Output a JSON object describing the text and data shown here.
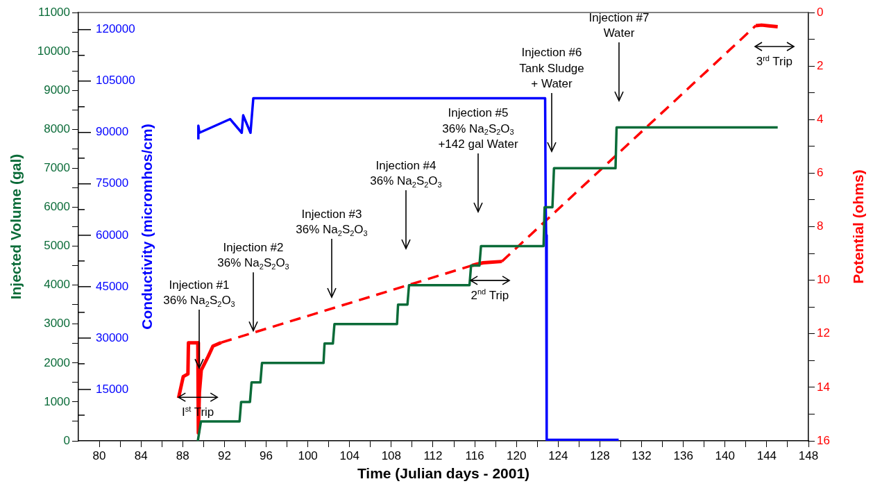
{
  "chart_data": {
    "type": "line",
    "xlabel": "Time (Julian days - 2001)",
    "ylabel": "Injected Volume (gal)",
    "y2label": "Conductivity (micromhos/cm)",
    "y3label": "Potential (ohms)",
    "legend": false,
    "grid": false,
    "marker": "none",
    "xlim": [
      78,
      148
    ],
    "xticks": [
      80,
      {
        "value": 82,
        "label": null
      },
      84,
      {
        "value": 86,
        "label": null
      },
      88,
      {
        "value": 90,
        "label": null
      },
      92,
      {
        "value": 94,
        "label": null
      },
      96,
      {
        "value": 98,
        "label": null
      },
      100,
      {
        "value": 102,
        "label": null
      },
      104,
      {
        "value": 106,
        "label": null
      },
      108,
      {
        "value": 110,
        "label": null
      },
      112,
      {
        "value": 114,
        "label": null
      },
      116,
      {
        "value": 118,
        "label": null
      },
      120,
      {
        "value": 122,
        "label": null
      },
      124,
      {
        "value": 126,
        "label": null
      },
      128,
      {
        "value": 130,
        "label": null
      },
      132,
      {
        "value": 134,
        "label": null
      },
      136,
      {
        "value": 138,
        "label": null
      },
      140,
      {
        "value": 142,
        "label": null
      },
      144,
      {
        "value": 146,
        "label": null
      },
      148
    ],
    "ylim": [
      0,
      11000
    ],
    "yticks": [
      0,
      {
        "value": 500,
        "label": null
      },
      1000,
      {
        "value": 1500,
        "label": null
      },
      2000,
      {
        "value": 2500,
        "label": null
      },
      3000,
      {
        "value": 3500,
        "label": null
      },
      4000,
      {
        "value": 4500,
        "label": null
      },
      5000,
      {
        "value": 5500,
        "label": null
      },
      6000,
      {
        "value": 6500,
        "label": null
      },
      7000,
      {
        "value": 7500,
        "label": null
      },
      8000,
      {
        "value": 8500,
        "label": null
      },
      9000,
      {
        "value": 9500,
        "label": null
      },
      10000,
      {
        "value": 10500,
        "label": null
      },
      11000
    ],
    "y2lim": [
      0,
      125000
    ],
    "y2ticks": [
      {
        "value": 7500,
        "label": null
      },
      15000,
      {
        "value": 22500,
        "label": null
      },
      30000,
      {
        "value": 37500,
        "label": null
      },
      45000,
      {
        "value": 52500,
        "label": null
      },
      60000,
      {
        "value": 67500,
        "label": null
      },
      75000,
      {
        "value": 82500,
        "label": null
      },
      90000,
      {
        "value": 97500,
        "label": null
      },
      105000,
      {
        "value": 112500,
        "label": null
      },
      120000
    ],
    "y3lim": [
      16,
      0
    ],
    "y3ticks": [
      0,
      {
        "value": 1,
        "label": null
      },
      2,
      {
        "value": 3,
        "label": null
      },
      4,
      {
        "value": 5,
        "label": null
      },
      6,
      {
        "value": 7,
        "label": null
      },
      8,
      {
        "value": 9,
        "label": null
      },
      10,
      {
        "value": 11,
        "label": null
      },
      12,
      {
        "value": 13,
        "label": null
      },
      14,
      {
        "value": 15,
        "label": null
      },
      16
    ],
    "series": [
      {
        "color": "#0a6b38",
        "x": [
          89.45,
          89.75,
          93.45,
          93.6,
          94.45,
          94.6,
          95.45,
          95.6,
          101.5,
          101.6,
          102.4,
          102.55,
          108.55,
          108.65,
          109.55,
          109.7,
          115.5,
          115.65,
          116.45,
          116.6,
          122.6,
          122.7,
          123.45,
          123.6,
          129.5,
          129.6,
          145.05
        ],
        "values": [
          0,
          500,
          500,
          1000,
          1000,
          1500,
          1500,
          2000,
          2000,
          2500,
          2500,
          3000,
          3000,
          3500,
          3500,
          4000,
          4000,
          4500,
          4500,
          5000,
          5000,
          6000,
          6000,
          7000,
          7000,
          8050,
          8050
        ]
      },
      {
        "color": "#0000ff",
        "axis": "y2",
        "x": [
          89.5,
          89.5,
          89.6,
          92.55,
          93.66,
          93.8,
          94.5,
          94.77,
          122.75,
          122.8,
          122.85,
          122.9,
          129.8
        ],
        "values": [
          88000,
          92000,
          89900,
          93900,
          89900,
          95000,
          89900,
          100000,
          100000,
          70000,
          60000,
          300,
          300
        ]
      },
      {
        "color": "#ff0000",
        "axis": "y3",
        "line_style": "solid",
        "x": [
          87.6,
          88.05,
          88.5,
          88.55,
          89.45,
          89.5,
          89.6,
          89.78,
          90.45,
          90.9,
          91.67
        ],
        "values": [
          14.4,
          13.6,
          13.5,
          12.34,
          12.34,
          15.7,
          14.2,
          13.36,
          12.84,
          12.46,
          12.33
        ]
      },
      {
        "color": "#ff0000",
        "axis": "y3",
        "line_style": "dashed",
        "x": [
          91.67,
          115.73
        ],
        "values": [
          12.33,
          9.45
        ]
      },
      {
        "color": "#ff0000",
        "axis": "y3",
        "line_style": "solid",
        "x": [
          115.73,
          116.2,
          116.8,
          117.5,
          118.6
        ],
        "values": [
          9.45,
          9.4,
          9.35,
          9.33,
          9.3
        ]
      },
      {
        "color": "#ff0000",
        "axis": "y3",
        "line_style": "dashed",
        "x": [
          118.6,
          142.95
        ],
        "values": [
          9.3,
          0.49
        ]
      },
      {
        "color": "#ff0000",
        "axis": "y3",
        "line_style": "solid",
        "x": [
          142.95,
          143.5,
          144.2,
          145.05
        ],
        "values": [
          0.49,
          0.47,
          0.5,
          0.53
        ]
      }
    ],
    "annotations": [
      {
        "text": "Injection #1\n36% Na$_{2}$S$_{2}$O$_{3}$",
        "x": 89.58,
        "y": 1870
      },
      {
        "text": "Injection #2\n36% Na$_{2}$S$_{2}$O$_{3}$",
        "x": 94.77,
        "y": 2830
      },
      "Injection #3\n36% Na$_{2}$S$_{2}$O$_{3}$",
      "Injection #4\n36% Na$_{2}$S$_{2}$O$_{3}$",
      "Injection #5\n36% Na$_{2}$S$_{2}$O$_{3}$\n+142 gal Water",
      "Injection #6\nTank Sludge\n+ Water",
      "Injection #7\nWater",
      {
        "text": "I$^{st}$ Trip",
        "x": 87.6,
        "y": 1120
      },
      {
        "text": "2$^{nd}$ Trip",
        "x": 115.6,
        "y": 4120
      },
      "3$^{rd}$ Trip"
    ]
  }
}
